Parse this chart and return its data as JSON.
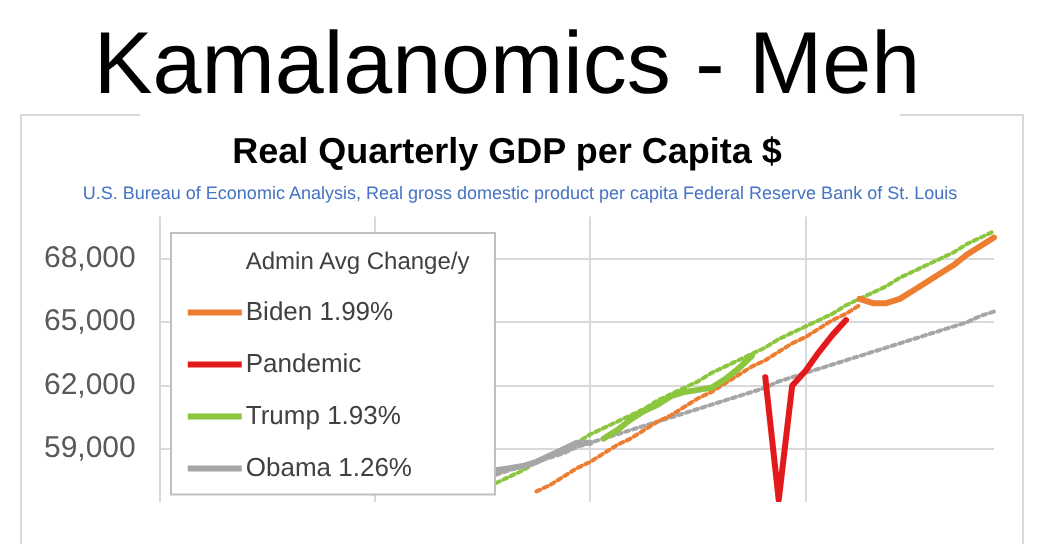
{
  "chart_data": {
    "type": "line",
    "title": "Kamalanomics - Meh",
    "subtitle": "Real Quarterly GDP per Capita $",
    "annotations": [
      "U.S. Bureau of Economic Analysis, Real gross domestic product per capita Federal Reserve Bank of St. Louis"
    ],
    "legend_title": "Admin Avg Change/y",
    "categories": [
      null,
      null,
      null,
      null,
      null,
      null,
      null,
      null,
      null,
      null,
      null,
      null,
      null,
      null,
      null,
      null,
      null,
      null,
      null,
      null,
      null,
      null,
      null,
      null,
      null,
      null,
      null,
      null,
      null,
      null,
      null,
      null,
      null,
      null,
      null,
      null,
      null,
      null,
      null,
      null,
      null,
      null,
      null,
      null,
      null,
      null,
      null,
      null,
      null,
      null,
      null,
      null,
      null,
      null,
      null,
      null,
      null,
      null,
      null,
      null,
      null,
      null,
      null
    ],
    "series": [
      {
        "name": "Biden 1.99%",
        "color": "#ed7d31",
        "values": [
          null,
          null,
          null,
          null,
          null,
          null,
          null,
          null,
          null,
          null,
          null,
          null,
          null,
          null,
          null,
          null,
          null,
          null,
          null,
          null,
          null,
          null,
          null,
          null,
          null,
          null,
          null,
          null,
          null,
          null,
          null,
          null,
          null,
          null,
          null,
          null,
          null,
          null,
          null,
          null,
          null,
          null,
          null,
          null,
          null,
          null,
          null,
          null,
          null,
          null,
          null,
          null,
          66100,
          65900,
          65900,
          66100,
          66500,
          66900,
          67300,
          67700,
          68200,
          68600,
          69000
        ]
      },
      {
        "name": "Pandemic",
        "color": "#e31a1c",
        "values": [
          null,
          null,
          null,
          null,
          null,
          null,
          null,
          null,
          null,
          null,
          null,
          null,
          null,
          null,
          null,
          null,
          null,
          null,
          null,
          null,
          null,
          null,
          null,
          null,
          null,
          null,
          null,
          null,
          null,
          null,
          null,
          null,
          null,
          null,
          null,
          null,
          null,
          null,
          null,
          null,
          null,
          null,
          null,
          null,
          null,
          62400,
          56600,
          62000,
          62700,
          63600,
          64400,
          65100,
          null,
          null,
          null,
          null,
          null,
          null,
          null,
          null,
          null,
          null,
          null
        ]
      },
      {
        "name": "Trump 1.93%",
        "color": "#8cc63f",
        "values": [
          null,
          null,
          null,
          null,
          null,
          null,
          null,
          null,
          null,
          null,
          null,
          null,
          null,
          null,
          null,
          null,
          null,
          null,
          null,
          null,
          null,
          null,
          null,
          null,
          null,
          null,
          null,
          null,
          null,
          null,
          null,
          null,
          null,
          59500,
          59900,
          60400,
          60800,
          61100,
          61500,
          61700,
          61800,
          61900,
          62300,
          62800,
          63400,
          null,
          null,
          null,
          null,
          null,
          null,
          null,
          null,
          null,
          null,
          null,
          null,
          null,
          null,
          null,
          null,
          null,
          null
        ]
      },
      {
        "name": "Obama 1.26%",
        "color": "#a6a6a6",
        "values": [
          null,
          null,
          null,
          null,
          null,
          null,
          null,
          null,
          null,
          null,
          null,
          null,
          null,
          null,
          null,
          null,
          null,
          null,
          null,
          null,
          null,
          null,
          null,
          null,
          null,
          58000,
          58100,
          58200,
          58400,
          58700,
          59000,
          59300,
          59300,
          null,
          null,
          null,
          null,
          null,
          null,
          null,
          null,
          null,
          null,
          null,
          null,
          null,
          null,
          null,
          null,
          null,
          null,
          null,
          null,
          null,
          null,
          null,
          null,
          null,
          null,
          null,
          null,
          null,
          null
        ]
      },
      {
        "color": "#ed7d31",
        "line_style": "dotted",
        "values": [
          null,
          null,
          null,
          null,
          null,
          null,
          null,
          null,
          null,
          null,
          null,
          null,
          null,
          null,
          null,
          null,
          null,
          null,
          null,
          null,
          null,
          null,
          null,
          null,
          null,
          null,
          null,
          null,
          57000,
          57300,
          57700,
          58100,
          58400,
          58800,
          59200,
          59500,
          59900,
          60300,
          60600,
          61000,
          61400,
          61700,
          62100,
          62500,
          62900,
          63200,
          63600,
          64000,
          64300,
          64700,
          65100,
          65400,
          65800,
          null,
          null,
          null,
          null,
          null,
          null,
          null,
          null,
          null,
          null
        ]
      },
      {
        "color": "#8cc63f",
        "line_style": "dotted",
        "values": [
          null,
          null,
          null,
          null,
          null,
          null,
          null,
          null,
          null,
          null,
          null,
          null,
          null,
          null,
          null,
          null,
          null,
          null,
          null,
          null,
          null,
          null,
          null,
          null,
          null,
          57400,
          57700,
          58000,
          58400,
          58700,
          59000,
          59300,
          59700,
          60000,
          60300,
          60600,
          60900,
          61300,
          61600,
          61900,
          62200,
          62600,
          62900,
          63200,
          63500,
          63800,
          64200,
          64500,
          64800,
          65100,
          65400,
          65800,
          66100,
          66400,
          66700,
          67100,
          67400,
          67700,
          68000,
          68300,
          68700,
          69000,
          69300
        ]
      },
      {
        "color": "#a6a6a6",
        "line_style": "dotted",
        "values": [
          null,
          null,
          null,
          null,
          null,
          null,
          null,
          null,
          null,
          null,
          null,
          null,
          null,
          null,
          null,
          null,
          null,
          null,
          null,
          null,
          null,
          null,
          null,
          null,
          null,
          57800,
          58000,
          58200,
          58400,
          58600,
          58800,
          59100,
          59300,
          59500,
          59700,
          59900,
          60100,
          60300,
          60500,
          60700,
          60900,
          61100,
          61300,
          61500,
          61700,
          61900,
          62200,
          62400,
          62600,
          62800,
          63000,
          63200,
          63400,
          63600,
          63800,
          64000,
          64200,
          64400,
          64600,
          64800,
          65000,
          65300,
          65500
        ]
      }
    ],
    "ylim": [
      56500,
      70000
    ],
    "yticks": [
      {
        "value": 59000,
        "label": "59,000"
      },
      {
        "value": 62000,
        "label": "62,000"
      },
      {
        "value": 65000,
        "label": "65,000"
      },
      {
        "value": 68000,
        "label": "68,000"
      }
    ],
    "grid": true,
    "legend": "left",
    "tick_labels": "y",
    "marker": "none"
  }
}
